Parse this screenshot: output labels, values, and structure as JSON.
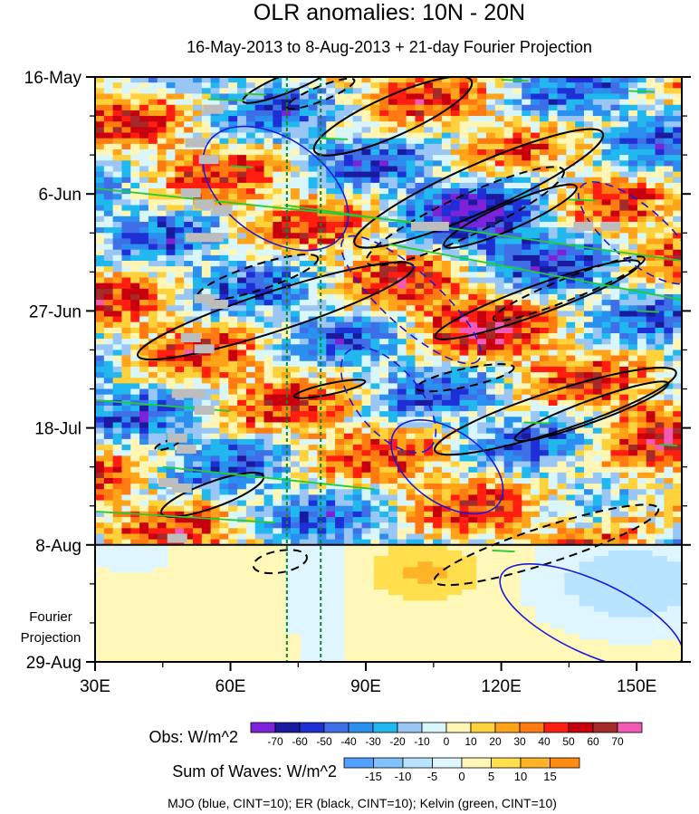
{
  "chart_data": {
    "type": "heatmap",
    "title": "OLR anomalies: 10N - 20N",
    "subtitle": "16-May-2013 to 8-Aug-2013 + 21-day Fourier Projection",
    "x_range": [
      30,
      160
    ],
    "x_ticks": [
      {
        "value": 30,
        "label": "30E"
      },
      {
        "value": 60,
        "label": "60E"
      },
      {
        "value": 90,
        "label": "90E"
      },
      {
        "value": 120,
        "label": "120E"
      },
      {
        "value": 150,
        "label": "150E"
      }
    ],
    "y_range_days": [
      0,
      105
    ],
    "y_ticks": [
      {
        "day": 0,
        "label": "16-May"
      },
      {
        "day": 21,
        "label": "6-Jun"
      },
      {
        "day": 42,
        "label": "27-Jun"
      },
      {
        "day": 63,
        "label": "18-Jul"
      },
      {
        "day": 84,
        "label": "8-Aug"
      },
      {
        "day": 105,
        "label": "29-Aug"
      }
    ],
    "projection_start_day": 84,
    "projection_label": [
      "Fourier",
      "Projection"
    ],
    "reference_longitudes": [
      72.5,
      80
    ],
    "obs_colorbar": {
      "label": "Obs: W/m^2",
      "levels": [
        -70,
        -60,
        -50,
        -40,
        -30,
        -20,
        -10,
        0,
        10,
        20,
        30,
        40,
        50,
        60,
        70
      ],
      "colors": [
        "#7d22d9",
        "#1a1a9f",
        "#1f2fd6",
        "#3f6fe6",
        "#2b8ff0",
        "#20b8ef",
        "#9ac6f5",
        "#d9f6fb",
        "#fff6b5",
        "#ffd23c",
        "#ffa319",
        "#ff7a10",
        "#ff1e10",
        "#c8000e",
        "#a52a2a",
        "#f25ab4"
      ]
    },
    "waves_colorbar": {
      "label": "Sum of Waves: W/m^2",
      "levels": [
        -15,
        -10,
        -5,
        0,
        5,
        10,
        15
      ],
      "colors": [
        "#52a1ff",
        "#7fc2ff",
        "#b9e4ff",
        "#e0f6ff",
        "#fff8b8",
        "#ffdf4d",
        "#ffb326",
        "#ff8b10"
      ]
    },
    "footer": "MJO (blue, CINT=10); ER (black, CINT=10); Kelvin (green, CINT=10)",
    "waves": [
      {
        "name": "MJO",
        "color": "#1a1adc"
      },
      {
        "name": "ER",
        "color": "#000000"
      },
      {
        "name": "Kelvin",
        "color": "#22cc33"
      }
    ],
    "colors": {
      "missing": "#bdbdbd"
    }
  }
}
